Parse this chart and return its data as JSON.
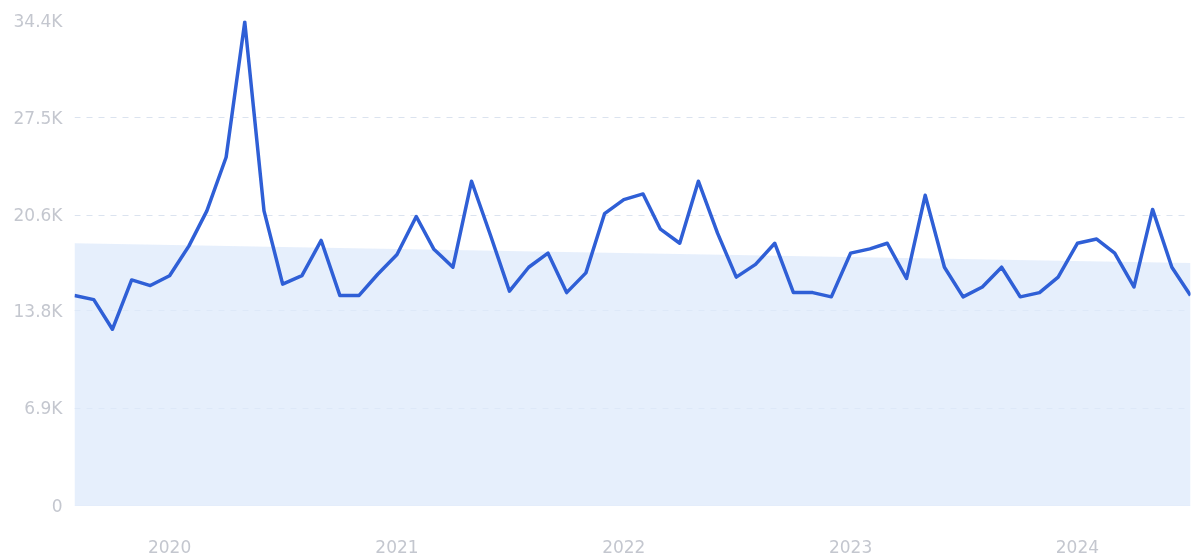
{
  "chart_data": {
    "type": "line",
    "x": [
      "2019-08",
      "2019-09",
      "2019-10",
      "2019-11",
      "2019-12",
      "2020-01",
      "2020-02",
      "2020-03",
      "2020-04",
      "2020-05",
      "2020-06",
      "2020-07",
      "2020-08",
      "2020-09",
      "2020-10",
      "2020-11",
      "2020-12",
      "2021-01",
      "2021-02",
      "2021-03",
      "2021-04",
      "2021-05",
      "2021-06",
      "2021-07",
      "2021-08",
      "2021-09",
      "2021-10",
      "2021-11",
      "2021-12",
      "2022-01",
      "2022-02",
      "2022-03",
      "2022-04",
      "2022-05",
      "2022-06",
      "2022-07",
      "2022-08",
      "2022-09",
      "2022-10",
      "2022-11",
      "2022-12",
      "2023-01",
      "2023-02",
      "2023-03",
      "2023-04",
      "2023-05",
      "2023-06",
      "2023-07",
      "2023-08",
      "2023-09",
      "2023-10",
      "2023-11",
      "2023-12",
      "2024-01",
      "2024-02",
      "2024-03",
      "2024-04",
      "2024-05",
      "2024-06",
      "2024-07"
    ],
    "series": [
      {
        "type": "area",
        "color": "#dde9fb",
        "x": [
          "2019-08",
          "2024-07"
        ],
        "values": [
          18.6,
          17.2
        ]
      },
      {
        "color": "#2f5fd6",
        "values": [
          14.9,
          14.6,
          12.5,
          16.0,
          15.6,
          16.3,
          18.4,
          20.9,
          24.7,
          34.3,
          20.9,
          15.7,
          16.3,
          18.8,
          14.9,
          14.9,
          16.4,
          17.8,
          20.5,
          18.2,
          16.9,
          23.0,
          19.1,
          15.2,
          16.9,
          17.9,
          15.1,
          16.5,
          20.7,
          21.7,
          22.1,
          19.6,
          18.6,
          23.0,
          19.3,
          16.2,
          17.1,
          18.6,
          15.1,
          15.1,
          14.8,
          17.9,
          18.2,
          18.6,
          16.1,
          22.0,
          16.9,
          14.8,
          15.5,
          16.9,
          14.8,
          15.1,
          16.2,
          18.6,
          18.9,
          17.9,
          15.5,
          21.0,
          16.9,
          14.9
        ]
      }
    ],
    "xlim": [
      "2019-08",
      "2024-07"
    ],
    "xticks": [
      {
        "value": "2020-01",
        "label": "2020"
      },
      {
        "value": "2021-01",
        "label": "2021"
      },
      {
        "value": "2022-01",
        "label": "2022"
      },
      {
        "value": "2023-01",
        "label": "2023"
      },
      {
        "value": "2024-01",
        "label": "2024"
      }
    ],
    "ylim": [
      0,
      34.4
    ],
    "yticks": [
      0,
      {
        "value": 6.9,
        "label": "6.9K"
      },
      {
        "value": 13.8,
        "label": "13.8K"
      },
      {
        "value": 20.6,
        "label": "20.6K"
      },
      {
        "value": 27.5,
        "label": "27.5K"
      },
      {
        "value": 34.4,
        "label": "34.4K"
      }
    ],
    "grid": "y",
    "marker": "none",
    "line_style": "solid"
  }
}
